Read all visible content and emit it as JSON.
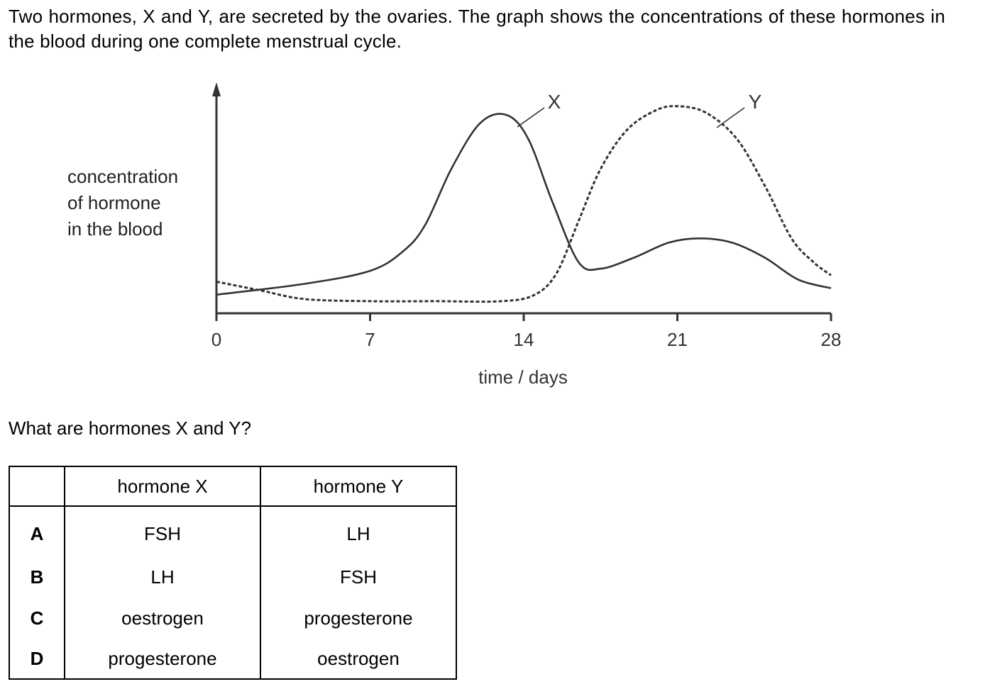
{
  "intro": "Two hormones, X and Y, are secreted by the ovaries. The graph shows the concentrations of these hormones in the blood during one complete menstrual cycle.",
  "question": "What are hormones X and Y?",
  "table": {
    "headers": [
      "",
      "hormone X",
      "hormone Y"
    ],
    "rows": [
      {
        "key": "A",
        "x": "FSH",
        "y": "LH"
      },
      {
        "key": "B",
        "x": "LH",
        "y": "FSH"
      },
      {
        "key": "C",
        "x": "oestrogen",
        "y": "progesterone"
      },
      {
        "key": "D",
        "x": "progesterone",
        "y": "oestrogen"
      }
    ]
  },
  "chart_data": {
    "type": "line",
    "xlabel": "time / days",
    "ylabel": [
      "concentration",
      "of hormone",
      "in the blood"
    ],
    "xticks": [
      0,
      7,
      14,
      21,
      28
    ],
    "xlim": [
      0,
      28
    ],
    "ylim": [
      0,
      10
    ],
    "grid": false,
    "series": [
      {
        "name": "X",
        "style": "solid",
        "points": [
          [
            0,
            0.4
          ],
          [
            4,
            0.9
          ],
          [
            7,
            1.5
          ],
          [
            8.5,
            2.4
          ],
          [
            9.5,
            3.6
          ],
          [
            10.7,
            6.2
          ],
          [
            12,
            8.3
          ],
          [
            13.2,
            8.7
          ],
          [
            14.2,
            7.6
          ],
          [
            15.3,
            4.7
          ],
          [
            16.5,
            1.9
          ],
          [
            17.5,
            1.6
          ],
          [
            19,
            2.1
          ],
          [
            20.6,
            2.8
          ],
          [
            22,
            3.0
          ],
          [
            23.5,
            2.8
          ],
          [
            25,
            2.1
          ],
          [
            26.5,
            1.1
          ],
          [
            28,
            0.7
          ]
        ]
      },
      {
        "name": "Y",
        "style": "dashed",
        "points": [
          [
            0,
            1.0
          ],
          [
            2,
            0.6
          ],
          [
            4,
            0.2
          ],
          [
            7,
            0.1
          ],
          [
            10,
            0.1
          ],
          [
            13,
            0.1
          ],
          [
            14.5,
            0.4
          ],
          [
            15.5,
            1.4
          ],
          [
            16.5,
            3.8
          ],
          [
            17.5,
            6.2
          ],
          [
            18.7,
            8.0
          ],
          [
            20,
            8.9
          ],
          [
            21,
            9.1
          ],
          [
            22.3,
            8.8
          ],
          [
            23.7,
            7.6
          ],
          [
            25,
            5.4
          ],
          [
            26.2,
            3.0
          ],
          [
            27.2,
            1.9
          ],
          [
            28,
            1.3
          ]
        ]
      }
    ]
  }
}
